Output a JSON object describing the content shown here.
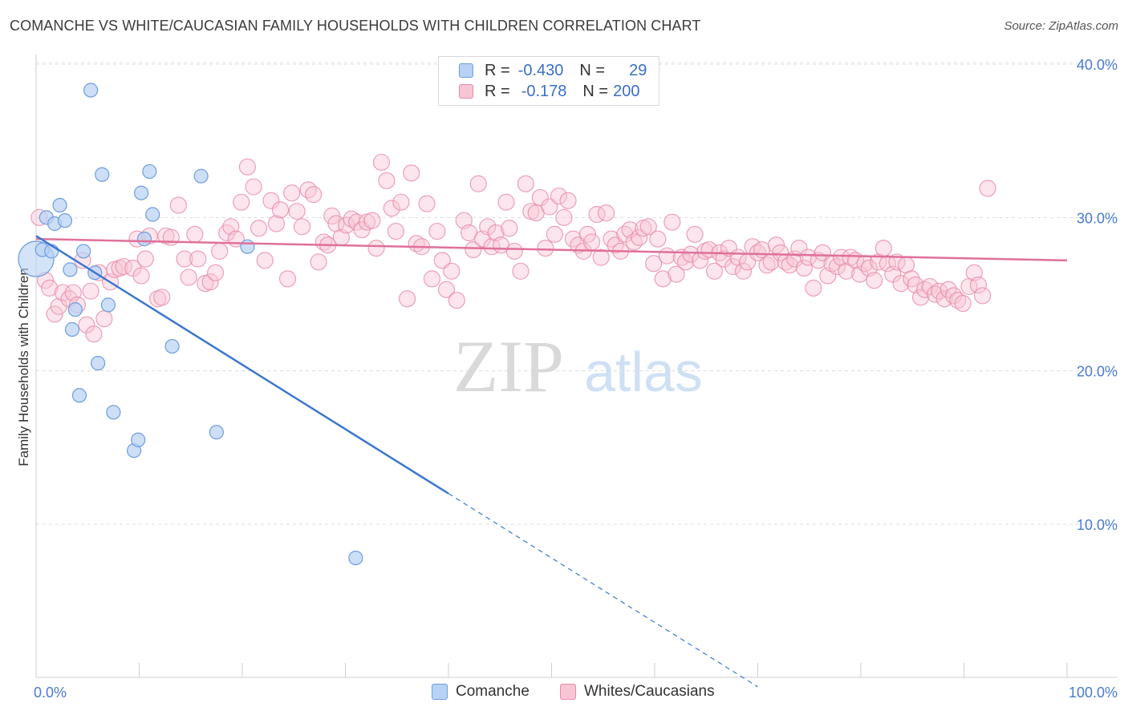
{
  "header": {
    "title": "COMANCHE VS WHITE/CAUCASIAN FAMILY HOUSEHOLDS WITH CHILDREN CORRELATION CHART",
    "source": "Source: ZipAtlas.com"
  },
  "watermark": {
    "zip": "ZIP",
    "atlas": "atlas"
  },
  "legend": {
    "series1": {
      "r_label": "R =",
      "r_value": "-0.430",
      "n_label": "N =",
      "n_value": "29"
    },
    "series2": {
      "r_label": "R =",
      "r_value": "-0.178",
      "n_label": "N =",
      "n_value": "200"
    }
  },
  "colors": {
    "comanche_fill": "#b8d2f4",
    "comanche_stroke": "#6e9de0",
    "comanche_line": "#3a78d0",
    "white_fill": "#f8c5d4",
    "white_stroke": "#e98aa8",
    "white_line": "#e0709a",
    "tick_color": "#4a7bd0"
  },
  "chart_data": {
    "type": "scatter",
    "title": "COMANCHE VS WHITE/CAUCASIAN FAMILY HOUSEHOLDS WITH CHILDREN CORRELATION CHART",
    "xlabel": "",
    "ylabel": "Family Households with Children",
    "xlim": [
      0,
      100
    ],
    "ylim": [
      0,
      42
    ],
    "x_tick_labels": [
      "0.0%",
      "100.0%"
    ],
    "y_ticks": [
      10,
      20,
      30,
      40
    ],
    "y_tick_labels": [
      "10.0%",
      "20.0%",
      "30.0%",
      "40.0%"
    ],
    "series": [
      {
        "name": "Comanche",
        "R": -0.43,
        "N": 29,
        "trend": {
          "x0": 0,
          "y0": 28.8,
          "x1": 40,
          "y1": 12.0,
          "dash_to_x": 70,
          "dash_to_y": -0.6
        },
        "points": [
          [
            0.0,
            27.3
          ],
          [
            0.6,
            27.9
          ],
          [
            1.0,
            30.0
          ],
          [
            1.5,
            27.8
          ],
          [
            1.8,
            29.6
          ],
          [
            2.3,
            30.8
          ],
          [
            2.8,
            29.8
          ],
          [
            3.3,
            26.6
          ],
          [
            3.5,
            22.7
          ],
          [
            3.8,
            24.0
          ],
          [
            4.2,
            18.4
          ],
          [
            4.6,
            27.8
          ],
          [
            5.3,
            38.3
          ],
          [
            5.7,
            26.4
          ],
          [
            6.0,
            20.5
          ],
          [
            6.4,
            32.8
          ],
          [
            7.0,
            24.3
          ],
          [
            7.5,
            17.3
          ],
          [
            9.5,
            14.8
          ],
          [
            9.9,
            15.5
          ],
          [
            10.2,
            31.6
          ],
          [
            10.5,
            28.6
          ],
          [
            11.0,
            33.0
          ],
          [
            11.3,
            30.2
          ],
          [
            13.2,
            21.6
          ],
          [
            16.0,
            32.7
          ],
          [
            17.5,
            16.0
          ],
          [
            20.5,
            28.1
          ],
          [
            31.0,
            7.8
          ]
        ]
      },
      {
        "name": "Whites/Caucasians",
        "R": -0.178,
        "N": 200,
        "trend": {
          "x0": 0,
          "y0": 28.6,
          "x1": 100,
          "y1": 27.2
        },
        "points": [
          [
            0.3,
            30.0
          ],
          [
            0.9,
            25.9
          ],
          [
            1.3,
            25.4
          ],
          [
            1.8,
            23.7
          ],
          [
            2.2,
            24.2
          ],
          [
            2.6,
            25.1
          ],
          [
            3.2,
            24.7
          ],
          [
            3.6,
            25.1
          ],
          [
            4.0,
            24.3
          ],
          [
            4.5,
            27.2
          ],
          [
            4.9,
            23.0
          ],
          [
            5.3,
            25.2
          ],
          [
            5.6,
            22.4
          ],
          [
            6.1,
            26.4
          ],
          [
            6.6,
            23.4
          ],
          [
            7.2,
            25.8
          ],
          [
            7.6,
            26.6
          ],
          [
            8.1,
            26.7
          ],
          [
            8.5,
            26.8
          ],
          [
            9.4,
            26.7
          ],
          [
            9.8,
            28.6
          ],
          [
            10.2,
            26.2
          ],
          [
            10.6,
            27.3
          ],
          [
            11.0,
            28.8
          ],
          [
            11.8,
            24.7
          ],
          [
            12.2,
            24.8
          ],
          [
            12.6,
            28.8
          ],
          [
            13.1,
            28.7
          ],
          [
            13.8,
            30.8
          ],
          [
            14.4,
            27.3
          ],
          [
            14.8,
            26.1
          ],
          [
            15.4,
            28.9
          ],
          [
            15.7,
            27.3
          ],
          [
            16.4,
            25.7
          ],
          [
            16.9,
            25.8
          ],
          [
            17.4,
            26.4
          ],
          [
            17.8,
            27.8
          ],
          [
            18.5,
            29.0
          ],
          [
            18.9,
            29.4
          ],
          [
            19.4,
            28.6
          ],
          [
            19.9,
            31.0
          ],
          [
            20.5,
            33.3
          ],
          [
            21.1,
            32.0
          ],
          [
            21.6,
            29.3
          ],
          [
            22.2,
            27.2
          ],
          [
            22.8,
            31.1
          ],
          [
            23.3,
            29.6
          ],
          [
            23.7,
            30.5
          ],
          [
            24.4,
            26.0
          ],
          [
            24.8,
            31.6
          ],
          [
            25.3,
            30.4
          ],
          [
            25.8,
            29.4
          ],
          [
            26.4,
            31.8
          ],
          [
            26.9,
            31.5
          ],
          [
            27.4,
            27.1
          ],
          [
            27.9,
            28.4
          ],
          [
            28.3,
            28.2
          ],
          [
            28.7,
            30.1
          ],
          [
            29.1,
            29.6
          ],
          [
            29.6,
            28.7
          ],
          [
            30.1,
            29.5
          ],
          [
            30.6,
            29.9
          ],
          [
            31.1,
            29.7
          ],
          [
            31.6,
            29.2
          ],
          [
            32.1,
            29.7
          ],
          [
            32.6,
            29.8
          ],
          [
            33.0,
            28.0
          ],
          [
            33.5,
            33.6
          ],
          [
            34.0,
            32.4
          ],
          [
            34.5,
            30.6
          ],
          [
            34.9,
            29.1
          ],
          [
            35.4,
            31.0
          ],
          [
            36.0,
            24.7
          ],
          [
            36.4,
            32.9
          ],
          [
            36.9,
            28.3
          ],
          [
            37.4,
            28.1
          ],
          [
            37.9,
            30.9
          ],
          [
            38.4,
            26.0
          ],
          [
            38.9,
            29.1
          ],
          [
            39.4,
            27.2
          ],
          [
            39.8,
            25.3
          ],
          [
            40.3,
            26.5
          ],
          [
            40.8,
            24.6
          ],
          [
            41.5,
            29.8
          ],
          [
            42.0,
            29.0
          ],
          [
            42.4,
            27.9
          ],
          [
            42.9,
            32.2
          ],
          [
            43.3,
            28.6
          ],
          [
            43.8,
            29.4
          ],
          [
            44.2,
            28.1
          ],
          [
            44.6,
            29.0
          ],
          [
            45.1,
            28.2
          ],
          [
            45.6,
            31.0
          ],
          [
            45.9,
            29.3
          ],
          [
            46.4,
            27.8
          ],
          [
            47.0,
            26.5
          ],
          [
            47.5,
            32.2
          ],
          [
            48.0,
            30.4
          ],
          [
            48.5,
            30.3
          ],
          [
            48.9,
            31.3
          ],
          [
            49.4,
            28.0
          ],
          [
            49.8,
            30.7
          ],
          [
            50.3,
            28.9
          ],
          [
            50.7,
            31.4
          ],
          [
            51.2,
            30.0
          ],
          [
            51.6,
            31.1
          ],
          [
            52.1,
            28.6
          ],
          [
            52.6,
            28.2
          ],
          [
            53.1,
            27.8
          ],
          [
            53.5,
            28.9
          ],
          [
            53.9,
            28.4
          ],
          [
            54.4,
            30.2
          ],
          [
            54.8,
            27.4
          ],
          [
            55.3,
            30.3
          ],
          [
            55.8,
            28.6
          ],
          [
            56.2,
            28.2
          ],
          [
            56.7,
            27.8
          ],
          [
            57.1,
            28.9
          ],
          [
            57.6,
            29.2
          ],
          [
            58.0,
            28.4
          ],
          [
            58.5,
            28.7
          ],
          [
            58.9,
            29.3
          ],
          [
            59.4,
            29.4
          ],
          [
            59.9,
            27.0
          ],
          [
            60.3,
            28.6
          ],
          [
            60.8,
            26.0
          ],
          [
            61.2,
            27.5
          ],
          [
            61.7,
            29.7
          ],
          [
            62.1,
            26.3
          ],
          [
            62.6,
            27.4
          ],
          [
            63.0,
            27.1
          ],
          [
            63.5,
            27.6
          ],
          [
            63.9,
            28.9
          ],
          [
            64.4,
            27.2
          ],
          [
            64.9,
            27.8
          ],
          [
            65.3,
            27.9
          ],
          [
            65.8,
            26.5
          ],
          [
            66.3,
            27.7
          ],
          [
            66.7,
            27.3
          ],
          [
            67.2,
            28.0
          ],
          [
            67.6,
            26.8
          ],
          [
            68.1,
            27.4
          ],
          [
            68.6,
            26.5
          ],
          [
            69.0,
            27.1
          ],
          [
            69.5,
            28.1
          ],
          [
            70.0,
            27.7
          ],
          [
            70.4,
            27.9
          ],
          [
            70.9,
            26.9
          ],
          [
            71.3,
            27.1
          ],
          [
            71.8,
            28.2
          ],
          [
            72.2,
            27.7
          ],
          [
            72.7,
            27.1
          ],
          [
            73.1,
            26.9
          ],
          [
            73.6,
            27.3
          ],
          [
            74.0,
            28.0
          ],
          [
            74.5,
            26.7
          ],
          [
            74.9,
            27.4
          ],
          [
            75.4,
            25.4
          ],
          [
            75.9,
            27.2
          ],
          [
            76.3,
            27.7
          ],
          [
            76.8,
            26.2
          ],
          [
            77.2,
            27.0
          ],
          [
            77.7,
            26.8
          ],
          [
            78.1,
            27.4
          ],
          [
            78.6,
            26.5
          ],
          [
            79.0,
            27.4
          ],
          [
            79.5,
            27.2
          ],
          [
            79.9,
            26.3
          ],
          [
            80.4,
            27.0
          ],
          [
            80.8,
            26.7
          ],
          [
            81.3,
            25.9
          ],
          [
            81.7,
            27.1
          ],
          [
            82.2,
            28.0
          ],
          [
            82.6,
            27.0
          ],
          [
            83.1,
            26.3
          ],
          [
            83.5,
            27.1
          ],
          [
            83.9,
            25.7
          ],
          [
            84.4,
            26.9
          ],
          [
            84.9,
            26.0
          ],
          [
            85.3,
            25.6
          ],
          [
            85.8,
            24.8
          ],
          [
            86.2,
            25.3
          ],
          [
            86.7,
            25.5
          ],
          [
            87.2,
            25.0
          ],
          [
            87.6,
            25.2
          ],
          [
            88.1,
            24.7
          ],
          [
            88.5,
            25.3
          ],
          [
            89.0,
            24.9
          ],
          [
            89.4,
            24.6
          ],
          [
            89.9,
            24.4
          ],
          [
            90.5,
            25.5
          ],
          [
            91.0,
            26.4
          ],
          [
            91.4,
            25.6
          ],
          [
            91.8,
            24.9
          ],
          [
            92.3,
            31.9
          ]
        ]
      }
    ]
  }
}
